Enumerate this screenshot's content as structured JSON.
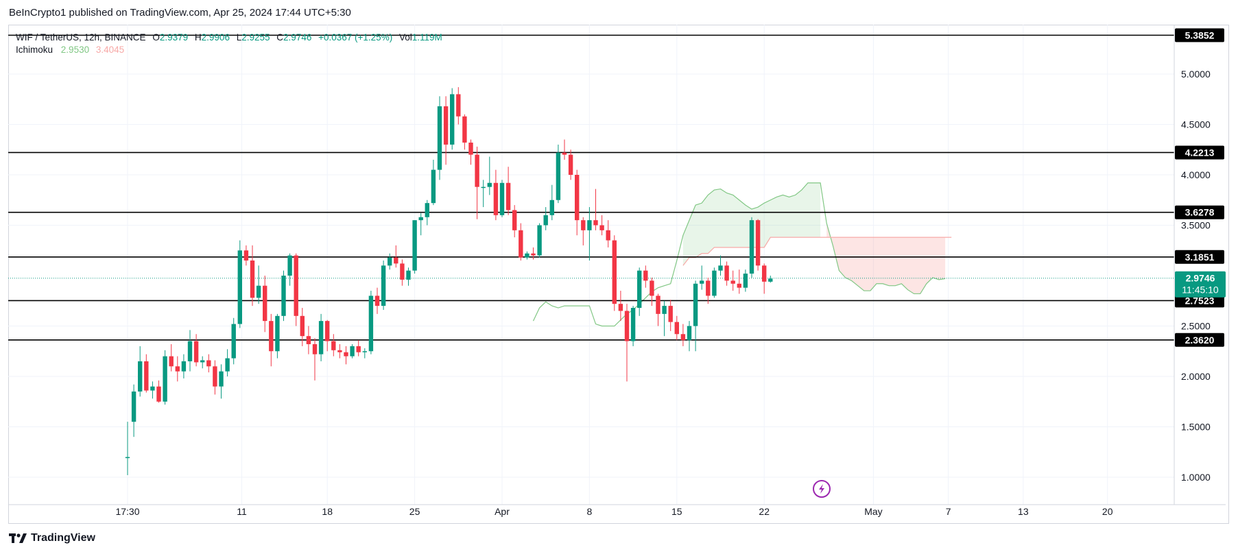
{
  "header": {
    "publisher": "BeInCrypto1 published on TradingView.com, Apr 25, 2024 17:44 UTC+5:30"
  },
  "legend": {
    "symbol": "WIF / TetherUS, 12h, BINANCE",
    "open_label": "O",
    "open": "2.9379",
    "high_label": "H",
    "high": "2.9906",
    "low_label": "L",
    "low": "2.9255",
    "close_label": "C",
    "close": "2.9746",
    "change": "+0.0367 (+1.25%)",
    "vol_label": "Vol",
    "vol": "1.119M",
    "indicator": "Ichimoku",
    "indicator_a": "2.9530",
    "indicator_b": "3.4045"
  },
  "footer": {
    "brand": "TradingView"
  },
  "colors": {
    "up": "#089981",
    "down": "#f23645",
    "cloud_up": "#81c784",
    "cloud_down": "#f7a9a7",
    "level_line": "#000000",
    "price_tag": "#089981"
  },
  "chart_data": {
    "type": "candlestick",
    "ylim": [
      0.55,
      5.55
    ],
    "y_ticks": [
      "5.0000",
      "4.5000",
      "4.0000",
      "3.5000",
      "2.5000",
      "2.0000",
      "1.5000",
      "1.0000"
    ],
    "y_tick_values": [
      5.0,
      4.5,
      4.0,
      3.5,
      2.5,
      2.0,
      1.5,
      1.0
    ],
    "x_ticks": [
      "17:30",
      "11",
      "18",
      "25",
      "Apr",
      "8",
      "15",
      "22",
      "May",
      "7",
      "13",
      "20"
    ],
    "x_tick_index": [
      0,
      18.3,
      32,
      46,
      60,
      74,
      88,
      102,
      119.5,
      131.5,
      143.5,
      157
    ],
    "levels": [
      "5.3852",
      "4.2213",
      "3.6278",
      "3.1851",
      "2.7523",
      "2.3620"
    ],
    "current_price": "2.9746",
    "countdown": "11:45:10",
    "candles": [
      [
        1.2,
        1.55,
        1.02,
        1.2
      ],
      [
        1.55,
        1.92,
        1.4,
        1.85
      ],
      [
        1.85,
        2.3,
        1.8,
        2.15
      ],
      [
        2.15,
        2.22,
        1.84,
        1.86
      ],
      [
        1.86,
        1.95,
        1.78,
        1.9
      ],
      [
        1.9,
        1.96,
        1.74,
        1.75
      ],
      [
        1.75,
        2.26,
        1.72,
        2.2
      ],
      [
        2.2,
        2.32,
        2.05,
        2.1
      ],
      [
        2.1,
        2.2,
        1.95,
        2.05
      ],
      [
        2.05,
        2.22,
        1.98,
        2.15
      ],
      [
        2.15,
        2.46,
        2.05,
        2.35
      ],
      [
        2.35,
        2.42,
        2.1,
        2.14
      ],
      [
        2.14,
        2.2,
        2.08,
        2.16
      ],
      [
        2.16,
        2.22,
        2.04,
        2.1
      ],
      [
        2.1,
        2.16,
        1.82,
        1.9
      ],
      [
        1.9,
        2.12,
        1.78,
        2.05
      ],
      [
        2.05,
        2.27,
        2.0,
        2.18
      ],
      [
        2.18,
        2.58,
        2.12,
        2.52
      ],
      [
        2.52,
        3.35,
        2.48,
        3.25
      ],
      [
        3.25,
        3.3,
        3.1,
        3.15
      ],
      [
        3.15,
        3.3,
        2.7,
        2.78
      ],
      [
        2.78,
        3.1,
        2.72,
        2.9
      ],
      [
        2.9,
        3.0,
        2.44,
        2.55
      ],
      [
        2.55,
        2.62,
        2.1,
        2.25
      ],
      [
        2.25,
        2.62,
        2.18,
        2.6
      ],
      [
        2.6,
        3.05,
        2.55,
        3.0
      ],
      [
        3.0,
        3.22,
        2.9,
        3.2
      ],
      [
        3.2,
        3.22,
        2.5,
        2.6
      ],
      [
        2.6,
        2.68,
        2.3,
        2.4
      ],
      [
        2.4,
        2.5,
        2.22,
        2.32
      ],
      [
        2.32,
        2.38,
        1.96,
        2.22
      ],
      [
        2.22,
        2.62,
        2.15,
        2.55
      ],
      [
        2.55,
        2.56,
        2.25,
        2.35
      ],
      [
        2.35,
        2.42,
        2.2,
        2.26
      ],
      [
        2.26,
        2.32,
        2.18,
        2.24
      ],
      [
        2.24,
        2.3,
        2.12,
        2.2
      ],
      [
        2.2,
        2.32,
        2.18,
        2.3
      ],
      [
        2.3,
        2.36,
        2.2,
        2.24
      ],
      [
        2.24,
        2.28,
        2.18,
        2.25
      ],
      [
        2.25,
        2.85,
        2.22,
        2.8
      ],
      [
        2.8,
        2.88,
        2.62,
        2.7
      ],
      [
        2.7,
        3.15,
        2.66,
        3.1
      ],
      [
        3.1,
        3.22,
        3.06,
        3.18
      ],
      [
        3.18,
        3.3,
        3.08,
        3.12
      ],
      [
        3.12,
        3.16,
        2.9,
        2.96
      ],
      [
        2.96,
        3.08,
        2.9,
        3.05
      ],
      [
        3.05,
        3.55,
        3.02,
        3.55
      ],
      [
        3.55,
        3.62,
        3.4,
        3.58
      ],
      [
        3.58,
        3.75,
        3.5,
        3.72
      ],
      [
        3.72,
        4.15,
        3.7,
        4.05
      ],
      [
        4.05,
        4.78,
        3.95,
        4.68
      ],
      [
        4.68,
        4.78,
        4.1,
        4.3
      ],
      [
        4.3,
        4.86,
        4.25,
        4.8
      ],
      [
        4.8,
        4.87,
        4.5,
        4.58
      ],
      [
        4.58,
        4.6,
        4.25,
        4.32
      ],
      [
        4.32,
        4.35,
        4.1,
        4.2
      ],
      [
        4.2,
        4.28,
        3.56,
        3.88
      ],
      [
        3.88,
        3.95,
        3.68,
        3.88
      ],
      [
        3.88,
        4.18,
        3.8,
        3.92
      ],
      [
        3.92,
        4.05,
        3.55,
        3.6
      ],
      [
        3.6,
        3.95,
        3.58,
        3.92
      ],
      [
        3.92,
        4.08,
        3.6,
        3.65
      ],
      [
        3.65,
        3.7,
        3.38,
        3.45
      ],
      [
        3.45,
        3.52,
        3.15,
        3.18
      ],
      [
        3.18,
        3.24,
        3.16,
        3.22
      ],
      [
        3.22,
        3.28,
        3.16,
        3.2
      ],
      [
        3.2,
        3.52,
        3.18,
        3.5
      ],
      [
        3.5,
        3.68,
        3.45,
        3.6
      ],
      [
        3.6,
        3.9,
        3.55,
        3.75
      ],
      [
        3.75,
        4.3,
        3.72,
        4.22
      ],
      [
        4.22,
        4.35,
        4.15,
        4.2
      ],
      [
        4.2,
        4.25,
        3.95,
        4.0
      ],
      [
        4.0,
        4.05,
        3.4,
        3.55
      ],
      [
        3.55,
        3.58,
        3.3,
        3.45
      ],
      [
        3.45,
        3.68,
        3.15,
        3.55
      ],
      [
        3.55,
        3.86,
        3.45,
        3.5
      ],
      [
        3.5,
        3.6,
        3.4,
        3.45
      ],
      [
        3.45,
        3.55,
        3.28,
        3.35
      ],
      [
        3.35,
        3.4,
        2.65,
        2.72
      ],
      [
        2.72,
        2.85,
        2.55,
        2.65
      ],
      [
        2.65,
        2.72,
        1.95,
        2.35
      ],
      [
        2.35,
        2.7,
        2.3,
        2.68
      ],
      [
        2.68,
        3.08,
        2.6,
        3.05
      ],
      [
        3.05,
        3.1,
        2.88,
        2.95
      ],
      [
        2.95,
        2.98,
        2.7,
        2.8
      ],
      [
        2.8,
        2.82,
        2.5,
        2.62
      ],
      [
        2.62,
        2.75,
        2.4,
        2.7
      ],
      [
        2.7,
        2.76,
        2.45,
        2.54
      ],
      [
        2.54,
        2.6,
        2.36,
        2.42
      ],
      [
        2.42,
        2.52,
        2.3,
        2.36
      ],
      [
        2.36,
        2.55,
        2.25,
        2.5
      ],
      [
        2.5,
        2.95,
        2.25,
        2.92
      ],
      [
        2.92,
        3.1,
        2.86,
        2.95
      ],
      [
        2.95,
        2.98,
        2.72,
        2.8
      ],
      [
        2.8,
        3.08,
        2.78,
        3.05
      ],
      [
        3.05,
        3.2,
        3.0,
        3.1
      ],
      [
        3.1,
        3.14,
        2.9,
        2.95
      ],
      [
        2.95,
        3.05,
        2.85,
        2.92
      ],
      [
        2.92,
        3.06,
        2.82,
        2.88
      ],
      [
        2.88,
        3.06,
        2.84,
        3.02
      ],
      [
        3.02,
        3.58,
        2.98,
        3.55
      ],
      [
        3.55,
        3.56,
        3.05,
        3.1
      ],
      [
        3.1,
        3.12,
        2.82,
        2.94
      ],
      [
        2.94,
        3.0,
        2.93,
        2.97
      ]
    ],
    "conversion_line": {
      "x_start": 65,
      "values": [
        2.55,
        2.68,
        2.74,
        2.7,
        2.68,
        2.7,
        2.7,
        2.7,
        2.7,
        2.7,
        2.52,
        2.5,
        2.5,
        2.5,
        2.56,
        2.62,
        2.66,
        2.72,
        2.78,
        2.84,
        2.88,
        2.9,
        2.92,
        3.15,
        3.4,
        3.55,
        3.7,
        3.72,
        3.8,
        3.85,
        3.86,
        3.82,
        3.8,
        3.75,
        3.7,
        3.66,
        3.68,
        3.72,
        3.75,
        3.78,
        3.8,
        3.78,
        3.8,
        3.85,
        3.92,
        3.92,
        3.92,
        3.52,
        3.3,
        3.05,
        2.98,
        2.95,
        2.9,
        2.85,
        2.85,
        2.92,
        2.92,
        2.9,
        2.9,
        2.92,
        2.86,
        2.82,
        2.82,
        2.92,
        2.98,
        2.96,
        2.97
      ]
    },
    "base_line": {
      "x_start": 89,
      "values": [
        3.1,
        3.18,
        3.18,
        3.22,
        3.22,
        3.28,
        3.28,
        3.28,
        3.28,
        3.28,
        3.28,
        3.28,
        3.28,
        3.28,
        3.38,
        3.38,
        3.38,
        3.38,
        3.38,
        3.38,
        3.38,
        3.38,
        3.38,
        3.38,
        3.38,
        3.38,
        3.38,
        3.38,
        3.38,
        3.38,
        3.38,
        3.38,
        3.38,
        3.38,
        3.38,
        3.38,
        3.38,
        3.38,
        3.38,
        3.38,
        3.38,
        3.38,
        3.38,
        3.38
      ]
    }
  }
}
